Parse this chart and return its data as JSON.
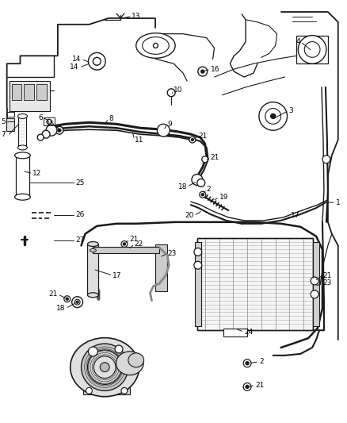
{
  "bg_color": "#ffffff",
  "line_color": "#1a1a1a",
  "gray": "#888888",
  "light_gray": "#cccccc",
  "mid_gray": "#aaaaaa",
  "figsize": [
    4.38,
    5.33
  ],
  "dpi": 100,
  "label_fontsize": 6.5
}
